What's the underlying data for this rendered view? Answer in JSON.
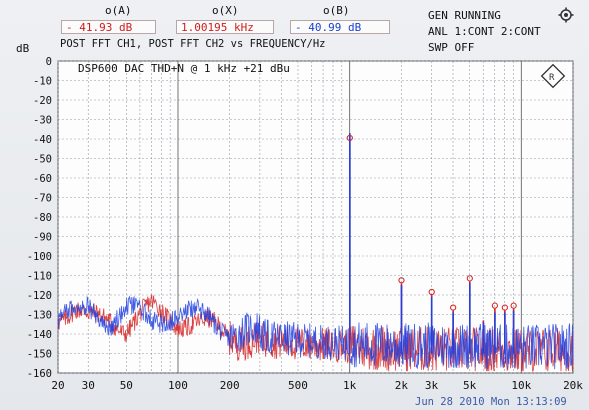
{
  "header": {
    "cursor_a": {
      "label": "o(A)",
      "value": "- 41.93 dB"
    },
    "cursor_x": {
      "label": "o(X)",
      "value": "1.00195 kHz"
    },
    "cursor_b": {
      "label": "o(B)",
      "value": "- 40.99 dB"
    },
    "line2": "POST FFT CH1, POST FFT CH2 vs   FREQUENCY/Hz",
    "unit_db": "dB"
  },
  "status": {
    "gen": "GEN RUNNING",
    "anl": "ANL 1:CONT 2:CONT",
    "swp": "SWP OFF"
  },
  "footer": {
    "date": "Jun 28 2010 Mon 13:13:09"
  },
  "icons": [
    "settings-icon",
    "logo-diamond-icon"
  ],
  "colors": {
    "ch1": "#d62020",
    "ch2": "#2040e0",
    "grid": "#8f9aa6",
    "plot_bg": "#fdfdfd"
  },
  "chart_data": {
    "type": "line",
    "title": "DSP600 DAC THD+N @ 1 kHz +21 dBu",
    "xlabel": "",
    "ylabel": "dB",
    "x_scale": "log",
    "xlim": [
      20,
      20000
    ],
    "ylim": [
      -160,
      0
    ],
    "yticks": [
      0,
      -10,
      -20,
      -30,
      -40,
      -50,
      -60,
      -70,
      -80,
      -90,
      -100,
      -110,
      -120,
      -130,
      -140,
      -150,
      -160
    ],
    "xticks": [
      {
        "v": 20,
        "label": "20"
      },
      {
        "v": 30,
        "label": "30"
      },
      {
        "v": 50,
        "label": "50"
      },
      {
        "v": 100,
        "label": "100"
      },
      {
        "v": 200,
        "label": "200"
      },
      {
        "v": 500,
        "label": "500"
      },
      {
        "v": 1000,
        "label": "1k"
      },
      {
        "v": 2000,
        "label": "2k"
      },
      {
        "v": 3000,
        "label": "3k"
      },
      {
        "v": 5000,
        "label": "5k"
      },
      {
        "v": 10000,
        "label": "10k"
      },
      {
        "v": 20000,
        "label": "20k"
      }
    ],
    "grid": true,
    "series": [
      {
        "color": "#d62020",
        "noise": [
          [
            20,
            -130
          ],
          [
            25,
            -128
          ],
          [
            30,
            -133
          ],
          [
            40,
            -131
          ],
          [
            50,
            -137
          ],
          [
            70,
            -127
          ],
          [
            100,
            -133
          ],
          [
            150,
            -136
          ],
          [
            200,
            -140
          ],
          [
            300,
            -143
          ],
          [
            500,
            -145
          ],
          [
            1000,
            -146
          ],
          [
            2000,
            -148
          ],
          [
            5000,
            -148
          ],
          [
            10000,
            -149
          ],
          [
            20000,
            -148
          ]
        ],
        "peaks": [
          {
            "f": 1002,
            "db": -38
          },
          {
            "f": 2004,
            "db": -114
          },
          {
            "f": 3006,
            "db": -120
          },
          {
            "f": 4008,
            "db": -128
          },
          {
            "f": 5010,
            "db": -113
          },
          {
            "f": 6012,
            "db": -133
          },
          {
            "f": 7014,
            "db": -127
          },
          {
            "f": 8016,
            "db": -128
          },
          {
            "f": 9018,
            "db": -127
          }
        ]
      },
      {
        "color": "#2040e0",
        "noise": [
          [
            20,
            -131
          ],
          [
            25,
            -130
          ],
          [
            30,
            -127
          ],
          [
            40,
            -133
          ],
          [
            50,
            -128
          ],
          [
            70,
            -133
          ],
          [
            100,
            -129
          ],
          [
            150,
            -132
          ],
          [
            200,
            -138
          ],
          [
            300,
            -141
          ],
          [
            500,
            -143
          ],
          [
            1000,
            -145
          ],
          [
            2000,
            -146
          ],
          [
            5000,
            -146
          ],
          [
            10000,
            -147
          ],
          [
            20000,
            -146
          ]
        ],
        "peaks": [
          {
            "f": 1002,
            "db": -37
          },
          {
            "f": 2004,
            "db": -115
          },
          {
            "f": 3006,
            "db": -121
          },
          {
            "f": 4008,
            "db": -129
          },
          {
            "f": 5010,
            "db": -114
          },
          {
            "f": 6012,
            "db": -134
          },
          {
            "f": 7014,
            "db": -129
          },
          {
            "f": 8016,
            "db": -129
          },
          {
            "f": 9018,
            "db": -128
          }
        ]
      }
    ],
    "markers": [
      {
        "f": 1002,
        "db": -41
      },
      {
        "f": 2004,
        "db": -114
      },
      {
        "f": 3006,
        "db": -120
      },
      {
        "f": 4008,
        "db": -128
      },
      {
        "f": 5010,
        "db": -113
      },
      {
        "f": 7014,
        "db": -127
      },
      {
        "f": 8016,
        "db": -128
      },
      {
        "f": 9018,
        "db": -127
      }
    ]
  }
}
